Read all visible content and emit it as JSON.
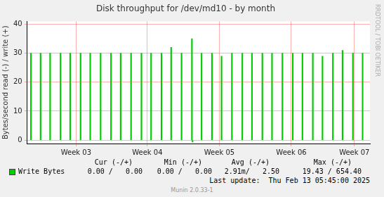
{
  "chart_data": {
    "type": "bar",
    "title": "Disk throughput for /dev/md10 - by month",
    "y_label": "Bytes/second read (-) / write (+)",
    "x": [
      0.36,
      1.29,
      2.21,
      3.21,
      4.14,
      5.14,
      6.07,
      7.07,
      8.07,
      9.0,
      10.0,
      11.0,
      11.93,
      12.93,
      13.86,
      14.86,
      15.86,
      15.92,
      16.79,
      17.79,
      18.71,
      19.71,
      20.71,
      21.64,
      22.64,
      23.57,
      24.57,
      25.57,
      26.5,
      27.5,
      28.43,
      29.43,
      30.36,
      31.36,
      32.29
    ],
    "series": [
      {
        "name": "Write Bytes",
        "color": "#00cc00",
        "values": [
          30,
          30,
          30,
          30,
          30,
          30,
          30,
          30,
          30,
          30,
          30,
          30,
          30,
          30,
          32,
          30,
          35,
          -0.7,
          30,
          30,
          29,
          30,
          30,
          30,
          30,
          30,
          30,
          30,
          30,
          30,
          29,
          30,
          31,
          30,
          30
        ]
      }
    ],
    "xlim": [
      0,
      33
    ],
    "xticks": [
      {
        "value": 4.71,
        "label": "Week 03"
      },
      {
        "value": 11.57,
        "label": "Week 04"
      },
      {
        "value": 18.5,
        "label": "Week 05"
      },
      {
        "value": 25.43,
        "label": "Week 06"
      },
      {
        "value": 31.5,
        "label": "Week 07"
      }
    ],
    "ylim": [
      -1.2,
      41
    ],
    "yticks": [
      0,
      10,
      20,
      30,
      40
    ],
    "grid": true,
    "stats": {
      "columns": [
        "Cur (-/+)",
        "Min (-/+)",
        "Avg (-/+)",
        "Max (-/+)"
      ],
      "cells": [
        "0.00 /   0.00",
        "0.00 /   0.00",
        "2.91m/   2.50",
        "19.43 / 654.40"
      ]
    },
    "annotations": [
      "RRDTOOL / TOBI OETIKER",
      "Last update:  Thu Feb 13 05:45:00 2025",
      "Munin 2.0.33-1"
    ]
  }
}
